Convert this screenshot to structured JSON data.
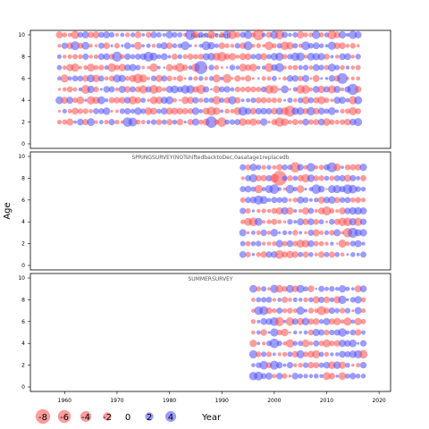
{
  "chart_data": {
    "type": "scatter",
    "subtype": "bubble-residuals",
    "panels": [
      {
        "title": "Residual catch",
        "ylim": [
          0,
          10
        ],
        "yticks": [
          0,
          2,
          4,
          6,
          8,
          10
        ],
        "ages": [
          2,
          3,
          4,
          5,
          6,
          7,
          8,
          9,
          10
        ],
        "years": [
          1959,
          2016
        ]
      },
      {
        "title": "SPRINGSURVEY(NOTshiftedbacktoDec,0asatage1replacedb",
        "ylim": [
          0,
          10
        ],
        "yticks": [
          0,
          2,
          4,
          6,
          8,
          10
        ],
        "ages": [
          1,
          2,
          3,
          4,
          5,
          6,
          7,
          8,
          9
        ],
        "years": [
          1994,
          2017
        ]
      },
      {
        "title": "SUMMERSURVEY",
        "ylim": [
          0,
          10
        ],
        "yticks": [
          0,
          2,
          4,
          6,
          8,
          10
        ],
        "ages": [
          1,
          2,
          3,
          4,
          5,
          6,
          7,
          8,
          9
        ],
        "years": [
          1996,
          2017
        ]
      }
    ],
    "xlim": [
      1955,
      2021
    ],
    "xticks": [
      1960,
      1970,
      1980,
      1990,
      2000,
      2010,
      2020
    ],
    "ylabel": "Age",
    "xlabel": "Year",
    "legend": {
      "position": "bottom-left",
      "items": [
        {
          "label": "-8",
          "value": -8
        },
        {
          "label": "-6",
          "value": -6
        },
        {
          "label": "-4",
          "value": -4
        },
        {
          "label": "-2",
          "value": -2
        },
        {
          "label": "0",
          "value": 0
        },
        {
          "label": "2",
          "value": 2
        },
        {
          "label": "4",
          "value": 4
        }
      ]
    },
    "colors": {
      "negative": "#ff4d4d",
      "positive": "#4d4dff"
    },
    "notes": "Bubble area proportional to residual magnitude; negative residuals red, positive residuals blue."
  }
}
